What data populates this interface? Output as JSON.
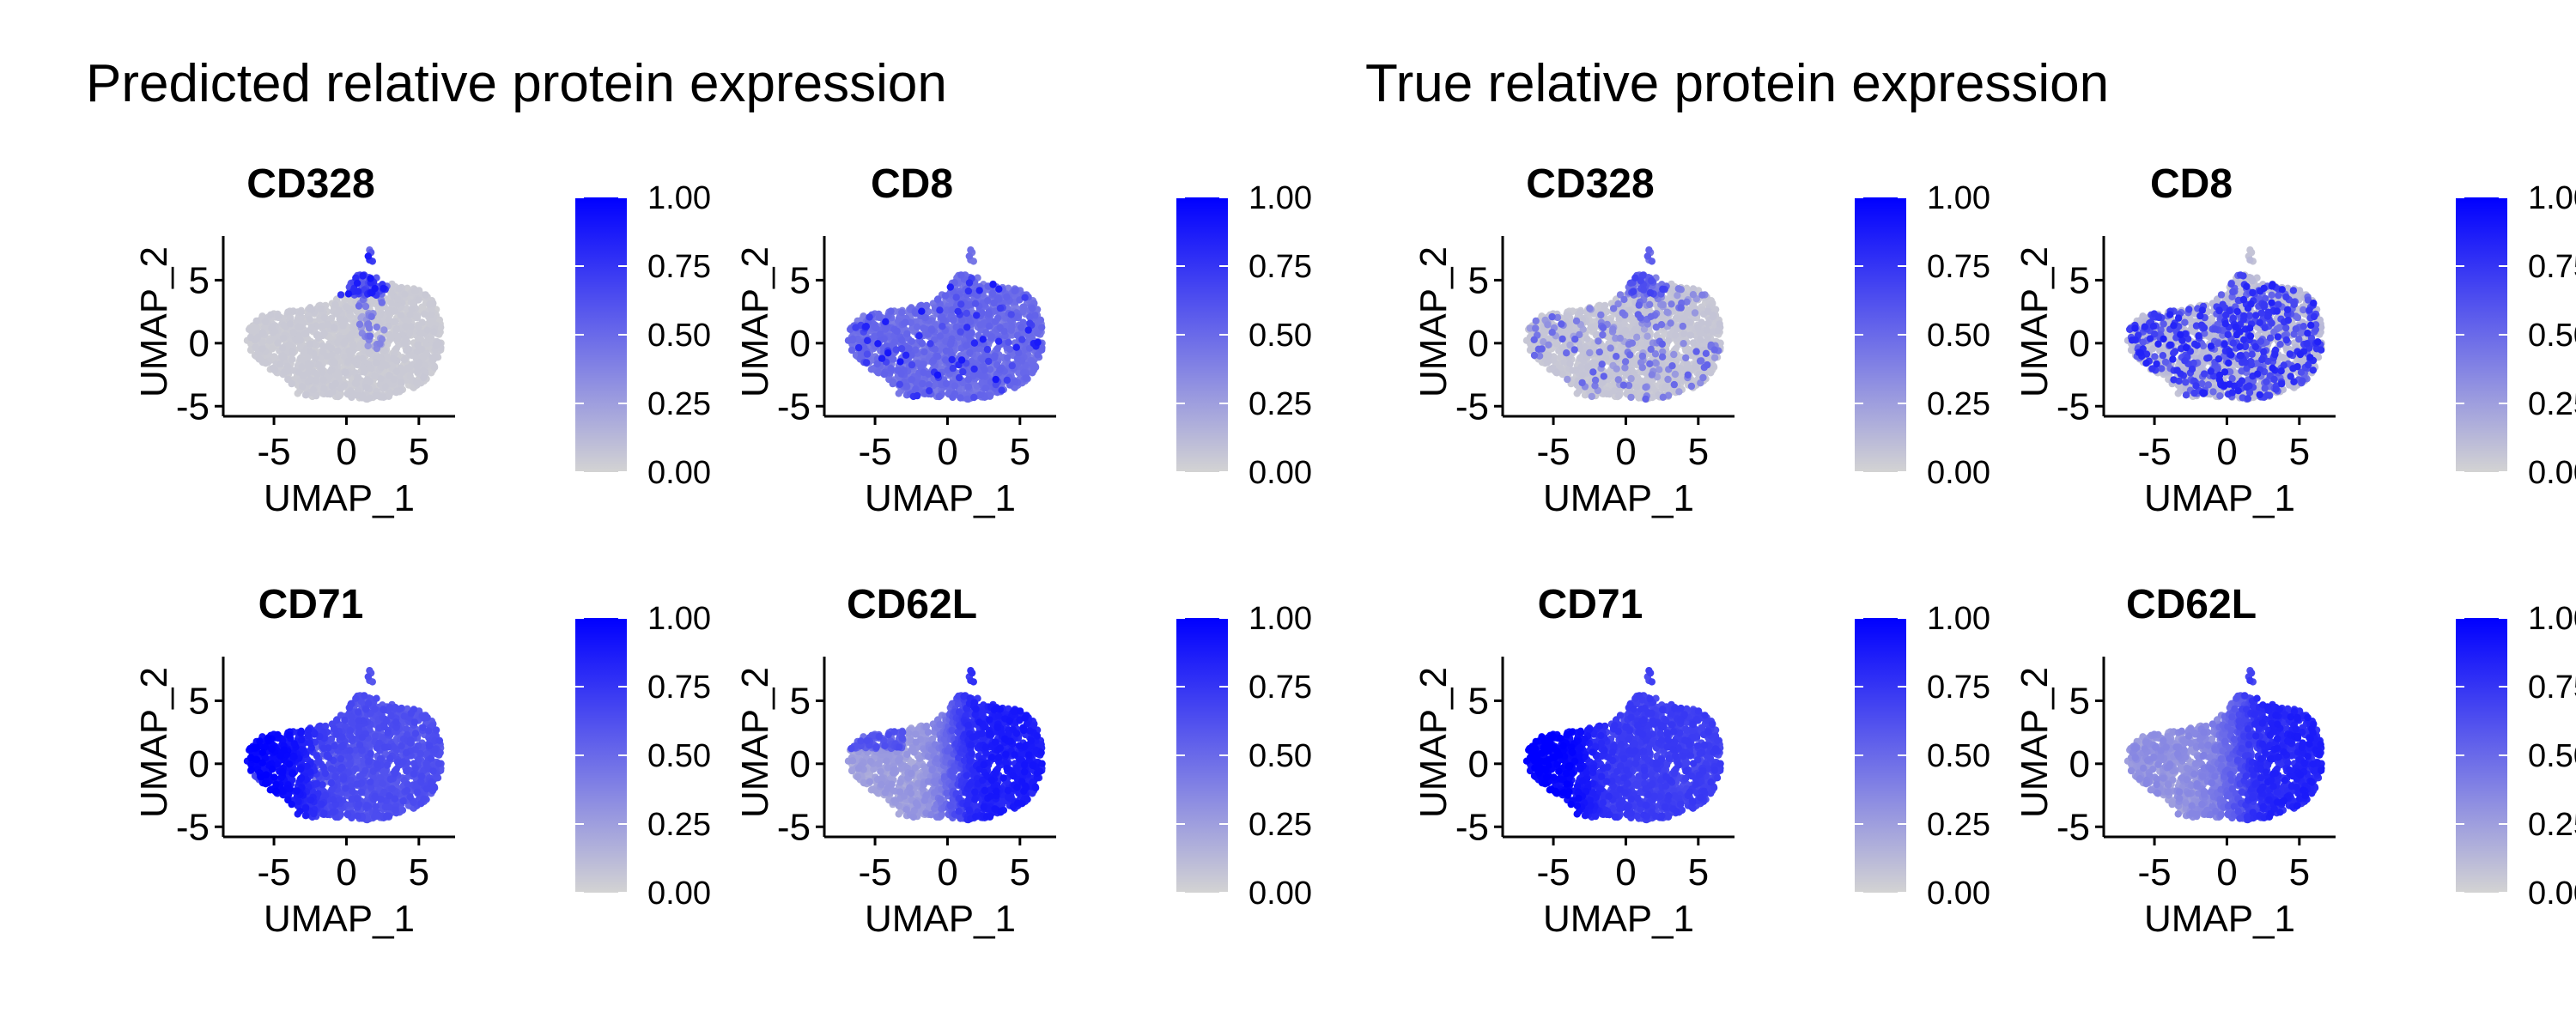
{
  "sections": [
    {
      "title": "Predicted relative protein expression",
      "panels": [
        {
          "title": "CD328",
          "pattern": "cd328_pred"
        },
        {
          "title": "CD8",
          "pattern": "cd8_pred"
        },
        {
          "title": "CD71",
          "pattern": "cd71_pred"
        },
        {
          "title": "CD62L",
          "pattern": "cd62l_pred"
        }
      ]
    },
    {
      "title": "True relative protein expression",
      "panels": [
        {
          "title": "CD328",
          "pattern": "cd328_true"
        },
        {
          "title": "CD8",
          "pattern": "cd8_true"
        },
        {
          "title": "CD71",
          "pattern": "cd71_true"
        },
        {
          "title": "CD62L",
          "pattern": "cd62l_true"
        }
      ]
    }
  ],
  "chart_data": {
    "type": "scatter",
    "xlabel": "UMAP_1",
    "ylabel": "UMAP_2",
    "xlim": [
      -8.5,
      7.5
    ],
    "ylim": [
      -5.8,
      8.5
    ],
    "xticks": [
      -5,
      0,
      5
    ],
    "yticks": [
      -5,
      0,
      5
    ],
    "xtick_labels": [
      "-5",
      "0",
      "5"
    ],
    "ytick_labels": [
      "-5",
      "0",
      "5"
    ],
    "colorbar": {
      "range": [
        0.0,
        1.0
      ],
      "ticks": [
        "0.00",
        "0.25",
        "0.50",
        "0.75",
        "1.00"
      ],
      "low_color": "#d3d3d3",
      "high_color": "#0000ff"
    },
    "grid": false
  }
}
